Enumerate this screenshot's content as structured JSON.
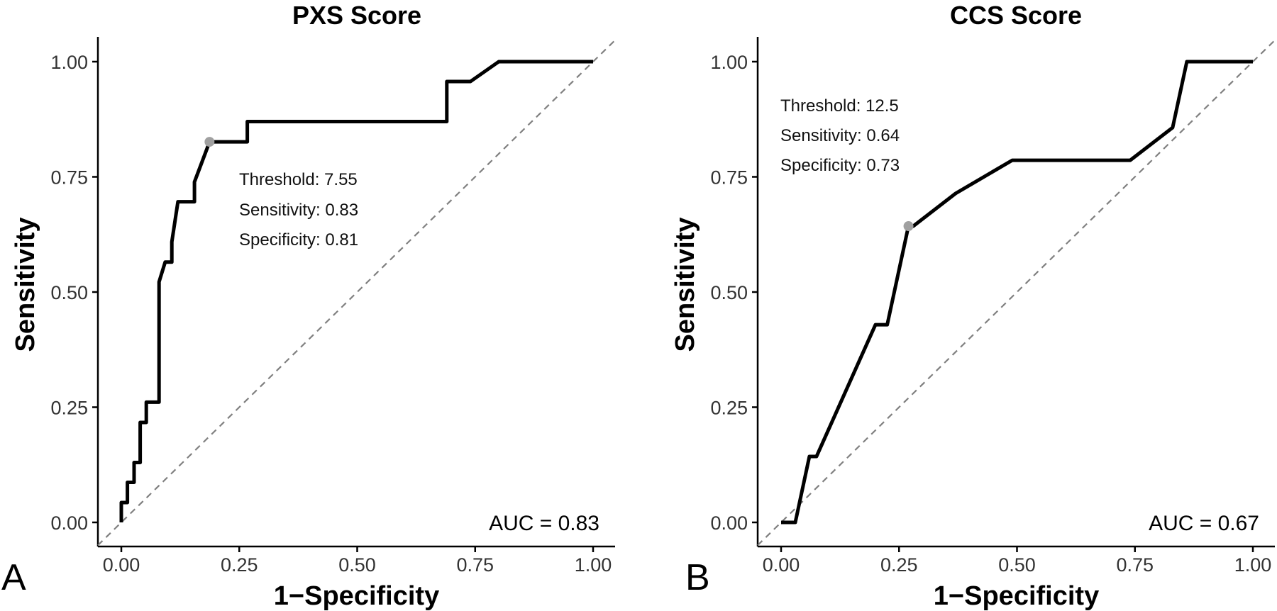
{
  "chart_data": [
    {
      "type": "line",
      "panel_label": "A",
      "title": "PXS Score",
      "xlabel": "1−Specificity",
      "ylabel": "Sensitivity",
      "xlim": [
        0,
        1
      ],
      "ylim": [
        0,
        1
      ],
      "x_ticks": [
        "0.00",
        "0.25",
        "0.50",
        "0.75",
        "1.00"
      ],
      "y_ticks": [
        "0.00",
        "0.25",
        "0.50",
        "0.75",
        "1.00"
      ],
      "series": [
        {
          "x": [
            0.0,
            0.0,
            0.013,
            0.013,
            0.027,
            0.027,
            0.04,
            0.04,
            0.053,
            0.053,
            0.067,
            0.067,
            0.08,
            0.08,
            0.093,
            0.093,
            0.107,
            0.107,
            0.12,
            0.12,
            0.155,
            0.155,
            0.187,
            0.187,
            0.267,
            0.267,
            0.69,
            0.69,
            0.74,
            0.8,
            1.0
          ],
          "y": [
            0.0,
            0.043,
            0.043,
            0.087,
            0.087,
            0.13,
            0.13,
            0.217,
            0.217,
            0.261,
            0.261,
            0.261,
            0.261,
            0.522,
            0.565,
            0.565,
            0.565,
            0.609,
            0.696,
            0.696,
            0.696,
            0.739,
            0.826,
            0.826,
            0.826,
            0.87,
            0.87,
            0.957,
            0.957,
            1.0,
            1.0
          ]
        }
      ],
      "optimal_point": {
        "x": 0.187,
        "y": 0.826
      },
      "reference_line": "diagonal dashed",
      "annotations": [
        "Threshold: 7.55",
        "Sensitivity: 0.83",
        "Specificity: 0.81"
      ],
      "auc_label": "AUC = 0.83",
      "grid": false
    },
    {
      "type": "line",
      "panel_label": "B",
      "title": "CCS Score",
      "xlabel": "1−Specificity",
      "ylabel": "Sensitivity",
      "xlim": [
        0,
        1
      ],
      "ylim": [
        0,
        1
      ],
      "x_ticks": [
        "0.00",
        "0.25",
        "0.50",
        "0.75",
        "1.00"
      ],
      "y_ticks": [
        "0.00",
        "0.25",
        "0.50",
        "0.75",
        "1.00"
      ],
      "series": [
        {
          "x": [
            0.0,
            0.03,
            0.06,
            0.075,
            0.2,
            0.225,
            0.27,
            0.28,
            0.37,
            0.49,
            0.74,
            0.83,
            0.86,
            1.0
          ],
          "y": [
            0.0,
            0.0,
            0.143,
            0.143,
            0.429,
            0.429,
            0.643,
            0.643,
            0.714,
            0.786,
            0.786,
            0.857,
            1.0,
            1.0
          ]
        }
      ],
      "optimal_point": {
        "x": 0.27,
        "y": 0.643
      },
      "reference_line": "diagonal dashed",
      "annotations": [
        "Threshold: 12.5",
        "Sensitivity: 0.64",
        "Specificity: 0.73"
      ],
      "auc_label": "AUC = 0.67",
      "grid": false
    }
  ],
  "colors": {
    "roc_line": "#000000",
    "reference_line": "#808080",
    "optimal_point": "#a0a0a0",
    "axis": "#000000"
  }
}
